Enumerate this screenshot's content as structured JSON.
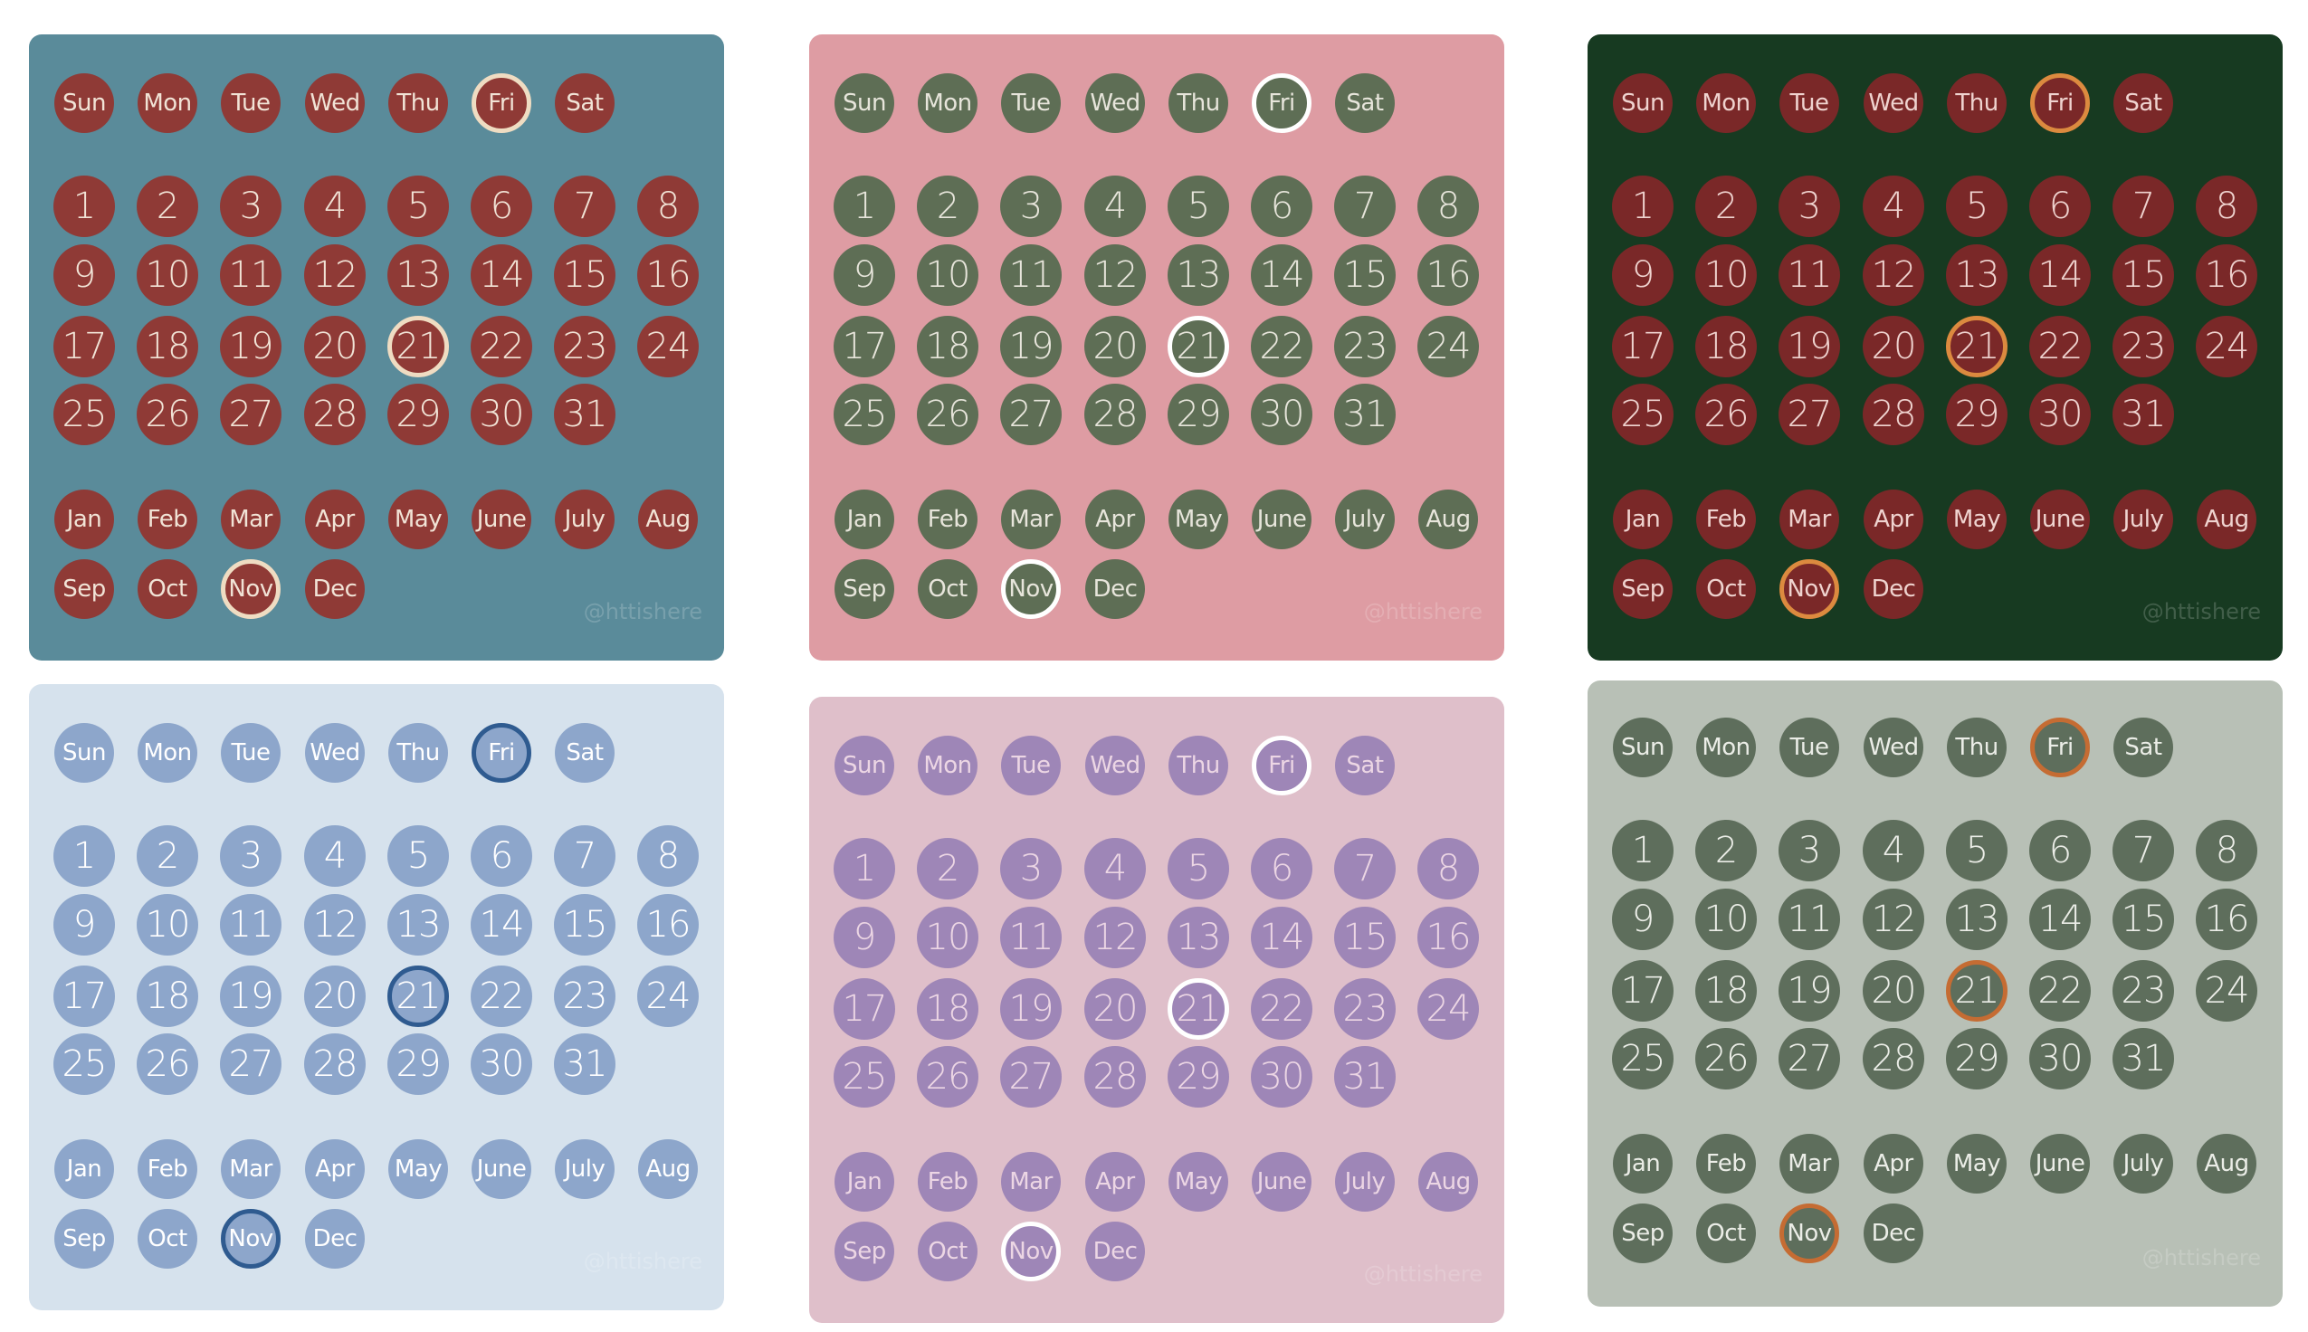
{
  "weekdays": [
    "Sun",
    "Mon",
    "Tue",
    "Wed",
    "Thu",
    "Fri",
    "Sat"
  ],
  "days": [
    "1",
    "2",
    "3",
    "4",
    "5",
    "6",
    "7",
    "8",
    "9",
    "10",
    "11",
    "12",
    "13",
    "14",
    "15",
    "16",
    "17",
    "18",
    "19",
    "20",
    "21",
    "22",
    "23",
    "24",
    "25",
    "26",
    "27",
    "28",
    "29",
    "30",
    "31"
  ],
  "months": [
    "Jan",
    "Feb",
    "Mar",
    "Apr",
    "May",
    "June",
    "July",
    "Aug",
    "Sep",
    "Oct",
    "Nov",
    "Dec"
  ],
  "highlight": {
    "weekday": "Fri",
    "day": "21",
    "month": "Nov"
  },
  "watermark": "@httishere",
  "cards": [
    {
      "bg": "#5a8b9a",
      "circle": "#8f3a36",
      "text": "#f1e3d6",
      "ring": "#efdcc2",
      "ringInner": "#8f3a36",
      "wm": "#ffffff"
    },
    {
      "bg": "#de9ca3",
      "circle": "#5e6e55",
      "text": "#e7e5db",
      "ring": "#ffffff",
      "ringInner": "#5e6e55",
      "wm": "#ffffff"
    },
    {
      "bg": "#173a21",
      "circle": "#7a2828",
      "text": "#efd3cf",
      "ring": "#dc8a3f",
      "ringInner": "#7a2828",
      "wm": "#ffffff"
    },
    {
      "bg": "#d6e2ed",
      "circle": "#8da6cb",
      "text": "#ffffff",
      "ring": "#2f5b90",
      "ringInner": "#8da6cb",
      "wm": "#ffffff"
    },
    {
      "bg": "#dfbfca",
      "circle": "#9e86b7",
      "text": "#ecd6e4",
      "ring": "#ffffff",
      "ringInner": "#9e86b7",
      "wm": "#ffffff"
    },
    {
      "bg": "#b8c0b6",
      "circle": "#5e6e5c",
      "text": "#ebede7",
      "ring": "#c56c33",
      "ringInner": "#5e6e5c",
      "wm": "#ffffff"
    }
  ]
}
